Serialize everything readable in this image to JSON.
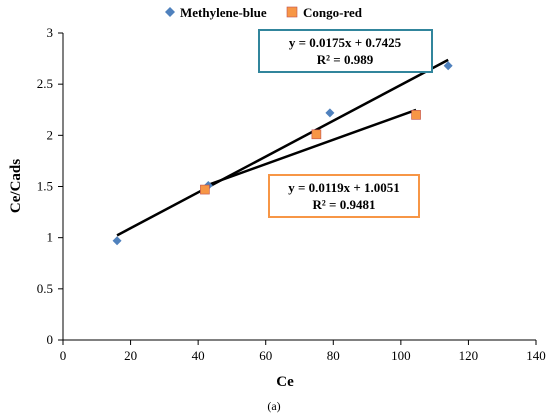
{
  "chart_data": {
    "type": "scatter",
    "xlabel": "Ce",
    "ylabel": "Ce/Cads",
    "xlim": [
      0,
      140
    ],
    "ylim": [
      0,
      3
    ],
    "xticks": [
      "0",
      "20",
      "40",
      "60",
      "80",
      "100",
      "120",
      "140"
    ],
    "yticks": [
      "0",
      "0.5",
      "1",
      "1.5",
      "2",
      "2.5",
      "3"
    ],
    "grid": false,
    "legend_position": "top-center",
    "series": [
      {
        "name": "Methylene-blue",
        "marker": "diamond",
        "color": "#4f81bd",
        "x": [
          16,
          43,
          79,
          114
        ],
        "y": [
          0.97,
          1.51,
          2.22,
          2.68
        ],
        "trendline": {
          "slope": 0.0175,
          "intercept": 0.7425,
          "x_range": [
            16,
            114
          ],
          "equation": "y = 0.0175x + 0.7425",
          "r2": "R² = 0.989",
          "box_color": "#31859c"
        }
      },
      {
        "name": "Congo-red",
        "marker": "square",
        "color": "#f79646",
        "x": [
          42,
          75,
          104.5
        ],
        "y": [
          1.47,
          2.01,
          2.2
        ],
        "trendline": {
          "slope": 0.0119,
          "intercept": 1.0051,
          "x_range": [
            42,
            104.5
          ],
          "equation": "y = 0.0119x + 1.0051",
          "r2": "R² = 0.9481",
          "box_color": "#f79646"
        }
      }
    ]
  },
  "caption": "(a)"
}
